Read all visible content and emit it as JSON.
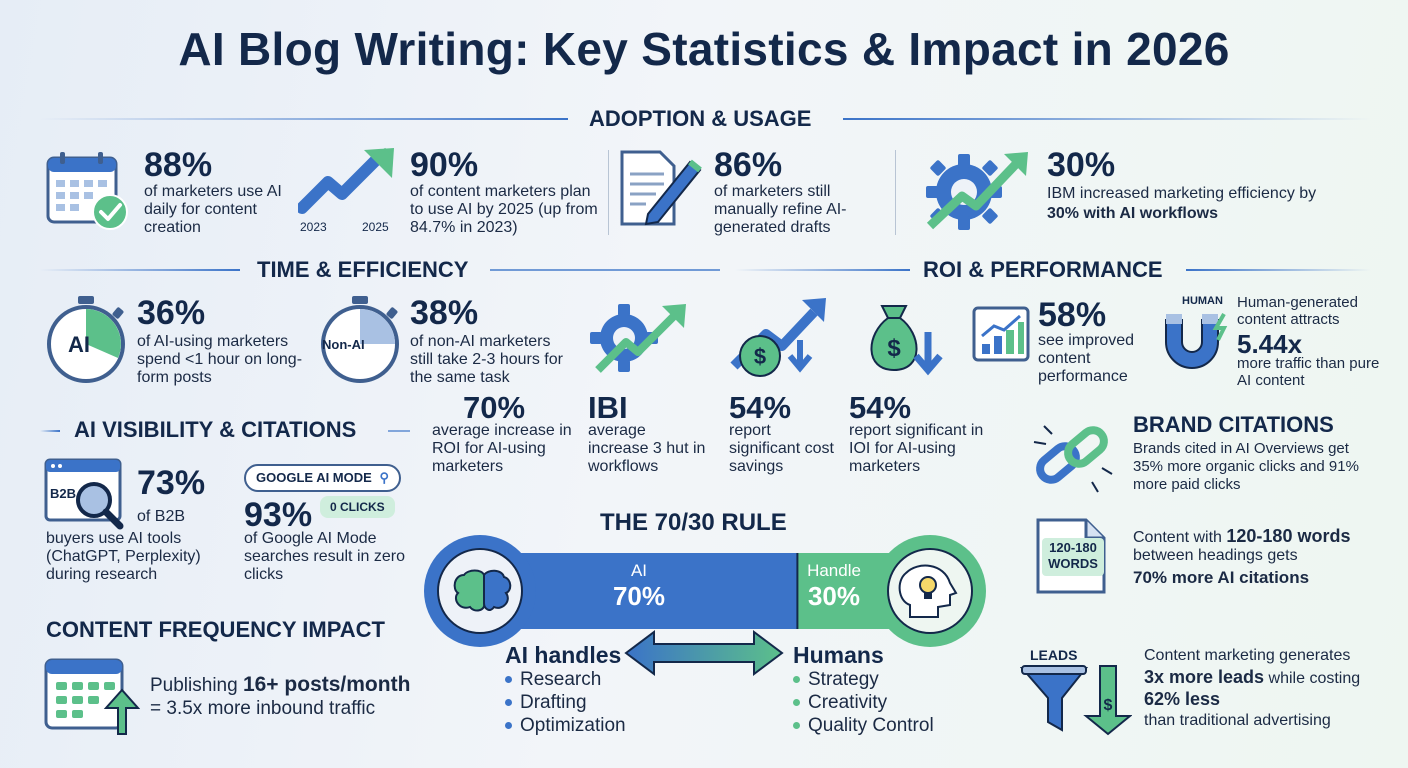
{
  "title": "AI Blog Writing: Key Statistics & Impact in 2026",
  "colors": {
    "blue": "#3b73c8",
    "green": "#5cc08a",
    "navy": "#13284a"
  },
  "sections": {
    "adoption": "ADOPTION & USAGE",
    "time": "TIME & EFFICIENCY",
    "roi": "ROI & PERFORMANCE",
    "visibility": "AI VISIBILITY & CITATIONS",
    "frequency": "CONTENT FREQUENCY IMPACT",
    "rule7030": "THE 70/30 RULE"
  },
  "adoption": {
    "s1": {
      "value": "88%",
      "text": "of marketers use AI daily for content creation",
      "icon": "calendar-check-icon"
    },
    "s2": {
      "value": "90%",
      "text": "of content marketers plan to use AI by 2025 (up from 84.7% in 2023)",
      "year_start": "2023",
      "year_end": "2025",
      "icon": "trend-arrow-icon"
    },
    "s3": {
      "value": "86%",
      "text": "of marketers still manually refine AI-generated drafts",
      "icon": "document-pen-icon"
    },
    "s4": {
      "value": "30%",
      "text_a": "IBM increased marketing efficiency by",
      "text_b": "30% with AI workflows",
      "icon": "gear-arrow-icon"
    }
  },
  "time": {
    "s1": {
      "value": "36%",
      "text": "of AI-using marketers spend <1 hour on long-form posts",
      "icon_label": "AI"
    },
    "s2": {
      "value": "38%",
      "text": "of non-AI marketers still take 2-3 hours for the same task",
      "icon_label": "Non-AI"
    },
    "s3": {
      "value": "70%",
      "text": "average increase in ROI for AI-using marketers"
    },
    "s4": {
      "value": "IBI",
      "text": "average increase 3 hut in workflows"
    }
  },
  "roi": {
    "s1": {
      "value": "54%",
      "text": "report significant cost savings"
    },
    "s2": {
      "value": "54%",
      "text": "report significant in IOI for AI-using marketers"
    },
    "s3": {
      "value": "58%",
      "text": "see improved content performance"
    },
    "s4": {
      "label": "HUMAN",
      "text_a": "Human-generated content attracts",
      "value": "5.44x",
      "text_b": "more traffic than pure AI content"
    }
  },
  "visibility": {
    "s1": {
      "value": "73%",
      "icon_label": "B2B",
      "text_a": "of B2B",
      "text_b": "buyers use AI tools (ChatGPT, Perplexity) during research"
    },
    "s2": {
      "search": "GOOGLE AI MODE",
      "clicks": "0 CLICKS",
      "value": "93%",
      "text": "of Google AI Mode searches result in zero clicks"
    }
  },
  "frequency": {
    "text_a": "Publishing",
    "bold": "16+ posts/month",
    "text_b": "= 3.5x more inbound traffic"
  },
  "rule": {
    "ai_label": "AI",
    "ai_pct": "70%",
    "human_label": "Handle",
    "human_pct": "30%",
    "ai_share": 0.7,
    "ai_heading": "AI handles",
    "ai_items": [
      "Research",
      "Drafting",
      "Optimization"
    ],
    "human_heading": "Humans",
    "human_items": [
      "Strategy",
      "Creativity",
      "Quality Control"
    ]
  },
  "brand": {
    "title": "BRAND CITATIONS",
    "text": "Brands cited in AI Overviews get 35% more organic clicks and 91% more paid clicks"
  },
  "words": {
    "badge_a": "120-180",
    "badge_b": "WORDS",
    "text_a": "Content with",
    "bold": "120-180 words",
    "text_b": "between headings gets",
    "text_c": "70% more AI citations"
  },
  "leads": {
    "label": "LEADS",
    "text_a": "Content marketing generates",
    "bold_a": "3x more leads",
    "text_b": "while costing",
    "bold_b": "62% less",
    "text_c": "than traditional advertising"
  }
}
